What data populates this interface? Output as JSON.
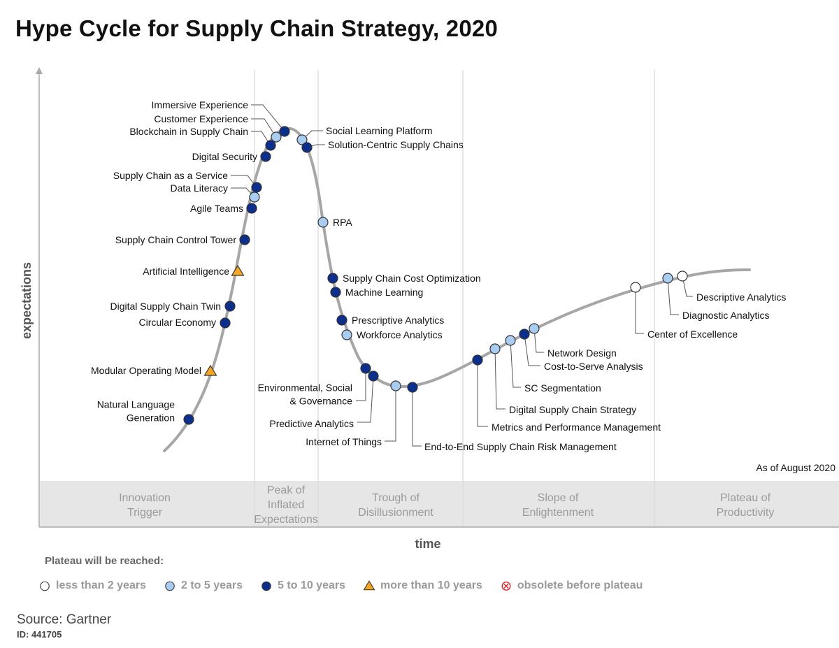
{
  "title": "Hype Cycle for Supply Chain Strategy, 2020",
  "chart_data": {
    "type": "scatter",
    "title": "Hype Cycle for Supply Chain Strategy, 2020",
    "xlabel": "time",
    "ylabel": "expectations",
    "as_of": "As of August 2020",
    "phases": [
      {
        "lines": [
          "Innovation",
          "Trigger"
        ]
      },
      {
        "lines": [
          "Peak of",
          "Inflated",
          "Expectations"
        ]
      },
      {
        "lines": [
          "Trough of",
          "Disillusionment"
        ]
      },
      {
        "lines": [
          "Slope of",
          "Enlightenment"
        ]
      },
      {
        "lines": [
          "Plateau of",
          "Productivity"
        ]
      }
    ],
    "categories": {
      "lt2": {
        "label": "less than 2 years",
        "shape": "circle",
        "color": "#ffffff"
      },
      "2to5": {
        "label": "2 to 5 years",
        "shape": "circle",
        "color": "#a9cdf0"
      },
      "5to10": {
        "label": "5 to 10 years",
        "shape": "circle",
        "color": "#0b2f8a"
      },
      "gt10": {
        "label": "more than 10 years",
        "shape": "triangle",
        "color": "#f5a623"
      },
      "obsolete": {
        "label": "obsolete before plateau",
        "shape": "cross",
        "color": "#e0242c"
      }
    },
    "points": [
      {
        "name": "Natural Language Generation",
        "lines": [
          "Natural Language",
          "Generation"
        ],
        "cat": "5to10",
        "phase": "Innovation Trigger"
      },
      {
        "name": "Modular Operating Model",
        "cat": "gt10",
        "phase": "Innovation Trigger"
      },
      {
        "name": "Circular Economy",
        "cat": "5to10",
        "phase": "Innovation Trigger"
      },
      {
        "name": "Digital Supply Chain Twin",
        "cat": "5to10",
        "phase": "Innovation Trigger"
      },
      {
        "name": "Artificial Intelligence",
        "cat": "gt10",
        "phase": "Innovation Trigger"
      },
      {
        "name": "Supply Chain Control Tower",
        "cat": "5to10",
        "phase": "Innovation Trigger"
      },
      {
        "name": "Agile Teams",
        "cat": "5to10",
        "phase": "Innovation Trigger"
      },
      {
        "name": "Data Literacy",
        "cat": "2to5",
        "phase": "Innovation Trigger"
      },
      {
        "name": "Supply Chain as a Service",
        "cat": "5to10",
        "phase": "Innovation Trigger"
      },
      {
        "name": "Digital Security",
        "cat": "5to10",
        "phase": "Peak of Inflated Expectations"
      },
      {
        "name": "Blockchain in Supply Chain",
        "cat": "5to10",
        "phase": "Peak of Inflated Expectations"
      },
      {
        "name": "Customer Experience",
        "cat": "2to5",
        "phase": "Peak of Inflated Expectations"
      },
      {
        "name": "Immersive Experience",
        "cat": "5to10",
        "phase": "Peak of Inflated Expectations"
      },
      {
        "name": "Social Learning Platform",
        "cat": "2to5",
        "phase": "Peak of Inflated Expectations"
      },
      {
        "name": "Solution-Centric Supply Chains",
        "cat": "5to10",
        "phase": "Peak of Inflated Expectations"
      },
      {
        "name": "RPA",
        "cat": "2to5",
        "phase": "Trough of Disillusionment"
      },
      {
        "name": "Supply Chain Cost Optimization",
        "cat": "5to10",
        "phase": "Trough of Disillusionment"
      },
      {
        "name": "Machine Learning",
        "cat": "5to10",
        "phase": "Trough of Disillusionment"
      },
      {
        "name": "Prescriptive Analytics",
        "cat": "5to10",
        "phase": "Trough of Disillusionment"
      },
      {
        "name": "Workforce Analytics",
        "cat": "2to5",
        "phase": "Trough of Disillusionment"
      },
      {
        "name": "Environmental, Social & Governance",
        "lines": [
          "Environmental, Social",
          "& Governance"
        ],
        "cat": "5to10",
        "phase": "Trough of Disillusionment"
      },
      {
        "name": "Predictive Analytics",
        "cat": "5to10",
        "phase": "Trough of Disillusionment"
      },
      {
        "name": "Internet of Things",
        "cat": "2to5",
        "phase": "Trough of Disillusionment"
      },
      {
        "name": "End-to-End Supply Chain Risk Management",
        "cat": "5to10",
        "phase": "Trough of Disillusionment"
      },
      {
        "name": "Metrics and Performance Management",
        "cat": "5to10",
        "phase": "Slope of Enlightenment"
      },
      {
        "name": "Digital Supply Chain Strategy",
        "cat": "2to5",
        "phase": "Slope of Enlightenment"
      },
      {
        "name": "SC Segmentation",
        "cat": "2to5",
        "phase": "Slope of Enlightenment"
      },
      {
        "name": "Cost-to-Serve Analysis",
        "cat": "5to10",
        "phase": "Slope of Enlightenment"
      },
      {
        "name": "Network Design",
        "cat": "2to5",
        "phase": "Slope of Enlightenment"
      },
      {
        "name": "Center of Excellence",
        "cat": "lt2",
        "phase": "Slope of Enlightenment"
      },
      {
        "name": "Diagnostic Analytics",
        "cat": "2to5",
        "phase": "Slope of Enlightenment"
      },
      {
        "name": "Descriptive Analytics",
        "cat": "lt2",
        "phase": "Slope of Enlightenment"
      }
    ]
  },
  "legend_title": "Plateau will be reached:",
  "source": "Source: Gartner",
  "doc_id": "ID: 441705"
}
